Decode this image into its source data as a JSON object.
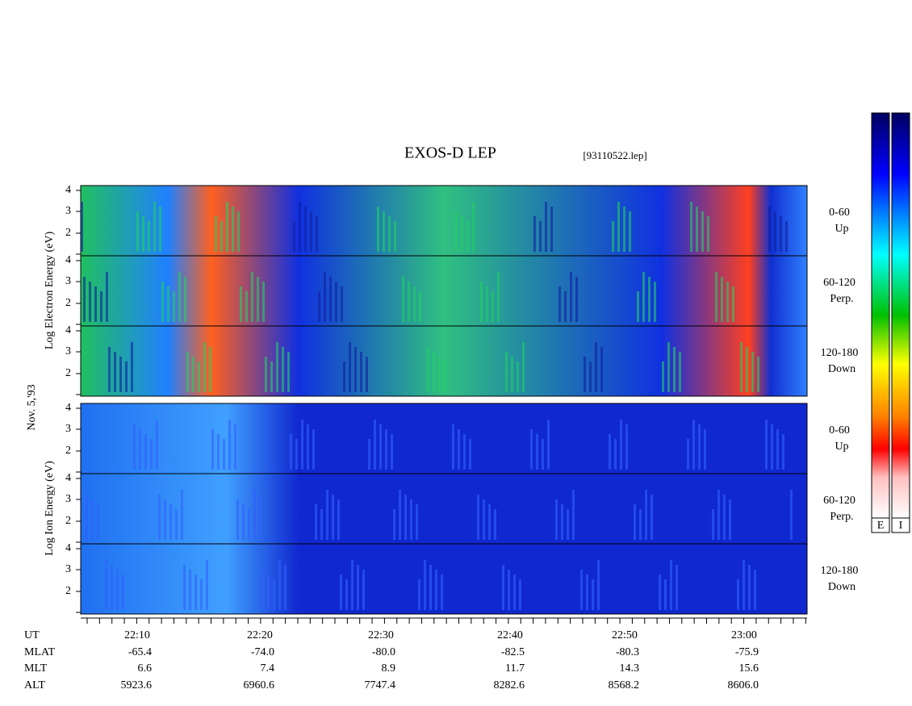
{
  "header": {
    "title": "EXOS-D LEP",
    "file": "[93110522.lep]"
  },
  "axis_labels": {
    "electron": "Log Electron Energy (eV)",
    "date": "Nov. 5,'93",
    "ion": "Log Ion Energy (eV)"
  },
  "panels": [
    {
      "ticks": [
        "4",
        "3",
        "2"
      ],
      "label": "0-60",
      "sublabel": "Up"
    },
    {
      "ticks": [
        "4",
        "3",
        "2"
      ],
      "label": "60-120",
      "sublabel": "Perp."
    },
    {
      "ticks": [
        "4",
        "3",
        "2"
      ],
      "label": "120-180",
      "sublabel": "Down"
    },
    {
      "ticks": [
        "4",
        "3",
        "2"
      ],
      "label": "0-60",
      "sublabel": "Up"
    },
    {
      "ticks": [
        "4",
        "3",
        "2"
      ],
      "label": "60-120",
      "sublabel": "Perp."
    },
    {
      "ticks": [
        "4",
        "3",
        "2"
      ],
      "label": "120-180",
      "sublabel": "Down"
    }
  ],
  "colorbars": [
    "E",
    "I"
  ],
  "time_table": {
    "row_labels": [
      "UT",
      "MLAT",
      "MLT",
      "ALT"
    ],
    "columns": [
      [
        "22:10",
        "-65.4",
        "6.6",
        "5923.6"
      ],
      [
        "22:20",
        "-74.0",
        "7.4",
        "6960.6"
      ],
      [
        "22:30",
        "-80.0",
        "8.9",
        "7747.4"
      ],
      [
        "22:40",
        "-82.5",
        "11.7",
        "8282.6"
      ],
      [
        "22:50",
        "-80.3",
        "14.3",
        "8568.2"
      ],
      [
        "23:00",
        "-75.9",
        "15.6",
        "8606.0"
      ]
    ]
  }
}
